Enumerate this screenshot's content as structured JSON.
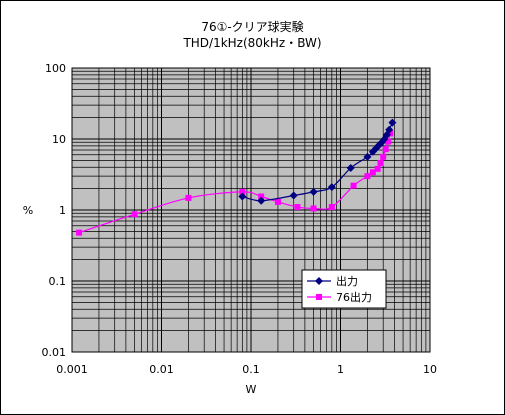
{
  "chart_data": {
    "type": "scatter",
    "title": "76①-クリア球実験",
    "subtitle": "THD/1kHz(80kHz・BW)",
    "xlabel": "W",
    "ylabel": "%",
    "x_scale": "log",
    "y_scale": "log",
    "xlim": [
      0.001,
      10
    ],
    "ylim": [
      0.01,
      100
    ],
    "x_tick_labels": [
      "0.001",
      "0.01",
      "0.1",
      "1",
      "10"
    ],
    "y_tick_labels": [
      "0.01",
      "0.1",
      "1",
      "10",
      "100"
    ],
    "grid": true,
    "plot_background": "#c0c0c0",
    "legend_position": "lower-right",
    "series": [
      {
        "name": "出力",
        "color": "#000080",
        "marker": "diamond",
        "x": [
          0.08,
          0.13,
          0.3,
          0.5,
          0.8,
          1.3,
          2.0,
          2.3,
          2.5,
          2.7,
          2.9,
          3.1,
          3.3,
          3.5,
          3.8
        ],
        "y": [
          1.55,
          1.35,
          1.6,
          1.8,
          2.1,
          3.9,
          5.6,
          6.6,
          7.4,
          8.2,
          9.0,
          10.0,
          11.5,
          13.5,
          17.0
        ]
      },
      {
        "name": "76出力",
        "color": "#ff00ff",
        "marker": "square",
        "x": [
          0.0012,
          0.005,
          0.02,
          0.08,
          0.13,
          0.2,
          0.33,
          0.5,
          0.8,
          1.4,
          2.0,
          2.3,
          2.6,
          2.8,
          3.0,
          3.2,
          3.4,
          3.6
        ],
        "y": [
          0.48,
          0.87,
          1.48,
          1.8,
          1.55,
          1.3,
          1.1,
          1.05,
          1.1,
          2.2,
          3.0,
          3.4,
          3.8,
          4.6,
          5.6,
          7.2,
          9.2,
          12.0
        ]
      }
    ]
  }
}
